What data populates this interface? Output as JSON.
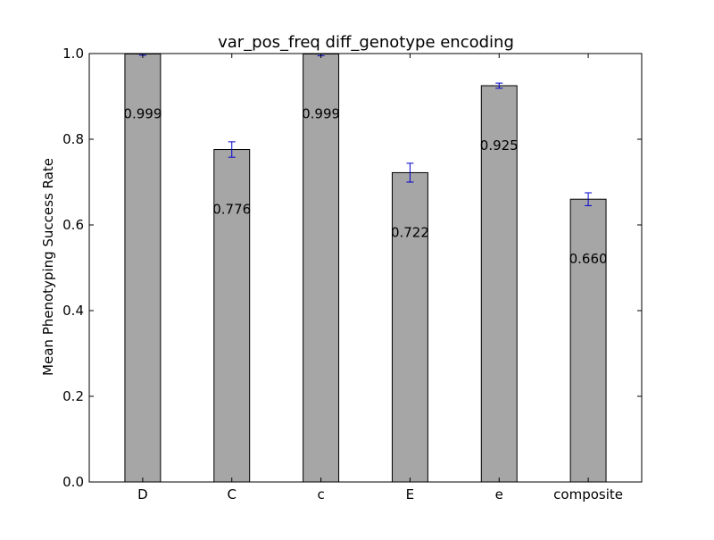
{
  "chart_data": {
    "type": "bar",
    "title": "var_pos_freq diff_genotype encoding",
    "xlabel": "",
    "ylabel": "Mean Phenotyping Success Rate",
    "ylim": [
      0,
      1.0
    ],
    "yticks": [
      "0.0",
      "0.2",
      "0.4",
      "0.6",
      "0.8",
      "1.0"
    ],
    "ytick_values": [
      0,
      0.2,
      0.4,
      0.6,
      0.8,
      1.0
    ],
    "grid": false,
    "categories": [
      "D",
      "C",
      "c",
      "E",
      "e",
      "composite"
    ],
    "values": [
      0.999,
      0.776,
      0.999,
      0.722,
      0.925,
      0.66
    ],
    "value_labels": [
      "0.999",
      "0.776",
      "0.999",
      "0.722",
      "0.925",
      "0.660"
    ],
    "errors": [
      0.003,
      0.018,
      0.004,
      0.022,
      0.006,
      0.015
    ],
    "colors": {
      "bar": "#a6a6a6",
      "bar_edge": "#000000",
      "error_bar": "#0000cc",
      "axis": "#000000"
    }
  }
}
